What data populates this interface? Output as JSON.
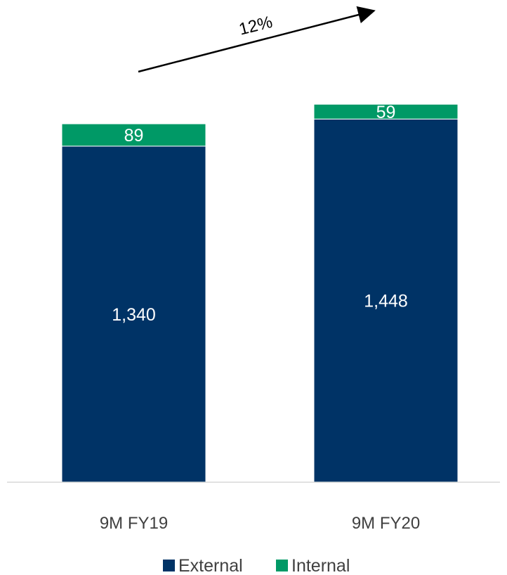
{
  "chart_data": {
    "type": "bar",
    "stacked": true,
    "categories": [
      "9M FY19",
      "9M FY20"
    ],
    "series": [
      {
        "name": "External",
        "values": [
          1340,
          1448
        ],
        "labels": [
          "1,340",
          "1,448"
        ],
        "color": "#003366"
      },
      {
        "name": "Internal",
        "values": [
          89,
          59
        ],
        "labels": [
          "89",
          "59"
        ],
        "color": "#009966"
      }
    ],
    "annotation": {
      "text": "12%",
      "type": "growth-arrow"
    },
    "legend": "bottom",
    "grid": false,
    "ylim": [
      0,
      1600
    ],
    "colors": {
      "baseline": "#d9d9d9",
      "tick_text": "#404040",
      "external_label": "#ffffff",
      "internal_label": "#ffffff"
    }
  }
}
